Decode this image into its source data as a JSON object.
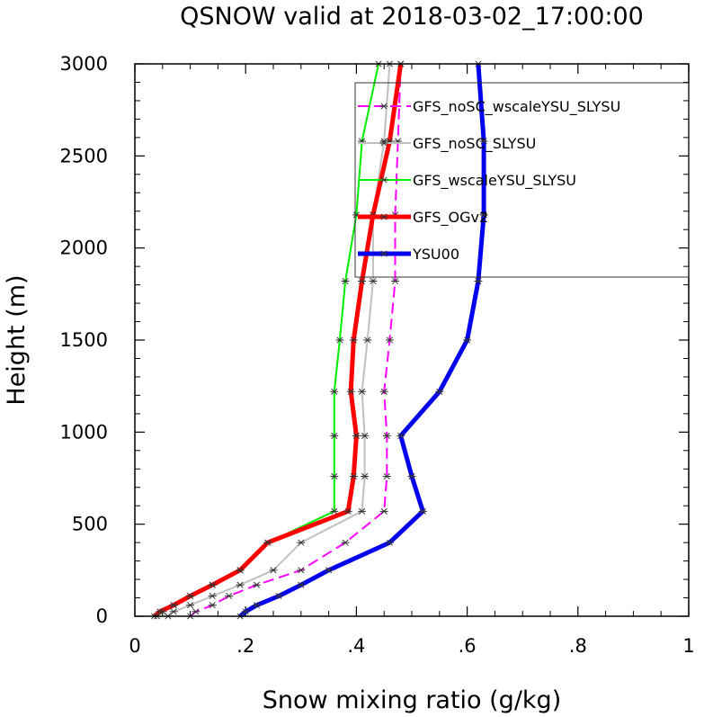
{
  "chart_data": {
    "type": "line",
    "title": "QSNOW valid at 2018-03-02_17:00:00",
    "xlabel": "Snow mixing ratio (g/kg)",
    "ylabel": "Height (m)",
    "xlim": [
      0,
      1
    ],
    "ylim": [
      0,
      3000
    ],
    "x_ticks": [
      0,
      0.2,
      0.4,
      0.6,
      0.8,
      1
    ],
    "x_tick_labels": [
      "0",
      ".2",
      ".4",
      ".6",
      ".8",
      "1"
    ],
    "y_ticks": [
      0,
      500,
      1000,
      1500,
      2000,
      2500,
      3000
    ],
    "y_tick_labels": [
      "0",
      "500",
      "1000",
      "1500",
      "2000",
      "2500",
      "3000"
    ],
    "grid": false,
    "legend_position": "top-right",
    "y": [
      0,
      25,
      60,
      110,
      170,
      250,
      400,
      570,
      760,
      980,
      1220,
      1500,
      1820,
      2180,
      2580,
      3000
    ],
    "series": [
      {
        "name": "GFS_noSC_wscaleYSU_SLYSU",
        "color": "#ff00ff",
        "style": "dashed",
        "width": 2,
        "values": [
          0.1,
          0.11,
          0.14,
          0.17,
          0.22,
          0.3,
          0.38,
          0.45,
          0.455,
          0.455,
          0.45,
          0.46,
          0.47,
          0.47,
          0.475,
          0.48
        ]
      },
      {
        "name": "GFS_noSC_SLYSU",
        "color": "#c0c0c0",
        "style": "solid",
        "width": 2,
        "values": [
          0.06,
          0.07,
          0.1,
          0.14,
          0.19,
          0.25,
          0.3,
          0.41,
          0.415,
          0.415,
          0.41,
          0.42,
          0.43,
          0.43,
          0.45,
          0.46
        ]
      },
      {
        "name": "GFS_wscaleYSU_SLYSU",
        "color": "#00ee00",
        "style": "solid",
        "width": 2,
        "values": [
          0.04,
          0.05,
          0.07,
          0.1,
          0.14,
          0.19,
          0.24,
          0.36,
          0.36,
          0.36,
          0.36,
          0.37,
          0.38,
          0.4,
          0.41,
          0.44
        ]
      },
      {
        "name": "GFS_OGv2",
        "color": "#ff0000",
        "style": "solid",
        "width": 5,
        "values": [
          0.035,
          0.045,
          0.07,
          0.1,
          0.14,
          0.19,
          0.24,
          0.385,
          0.395,
          0.4,
          0.39,
          0.395,
          0.41,
          0.43,
          0.46,
          0.48
        ]
      },
      {
        "name": "YSU00",
        "color": "#0000ee",
        "style": "solid",
        "width": 5,
        "values": [
          0.19,
          0.2,
          0.22,
          0.26,
          0.3,
          0.35,
          0.46,
          0.52,
          0.5,
          0.48,
          0.55,
          0.6,
          0.62,
          0.63,
          0.63,
          0.62
        ]
      }
    ]
  }
}
